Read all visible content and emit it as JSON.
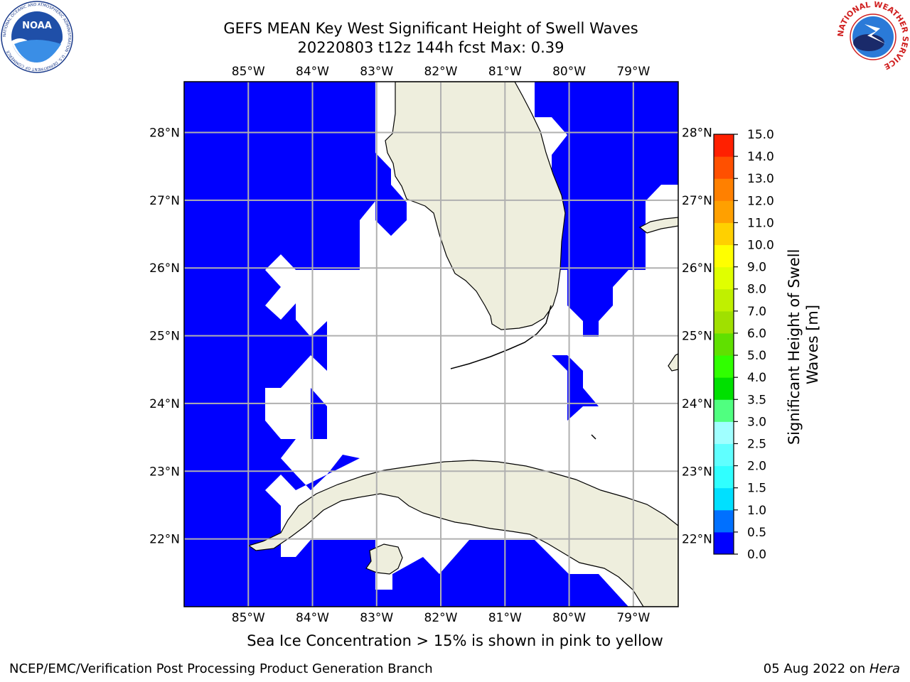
{
  "header": {
    "title_line1": "GEFS MEAN Key West Significant Height of Swell Waves",
    "title_line2": "20220803 t12z 144h fcst   Max: 0.39"
  },
  "logos": {
    "left": {
      "name": "noaa-logo",
      "text": "NOAA",
      "ring_text": "NATIONAL OCEANIC AND ATMOSPHERIC ADMINISTRATION · U.S. DEPARTMENT OF COMMERCE"
    },
    "right": {
      "name": "nws-logo",
      "ring_text": "NATIONAL WEATHER SERVICE"
    }
  },
  "map": {
    "lon_labels": [
      "85°W",
      "84°W",
      "83°W",
      "82°W",
      "81°W",
      "80°W",
      "79°W"
    ],
    "lat_labels": [
      "28°N",
      "27°N",
      "26°N",
      "25°N",
      "24°N",
      "23°N",
      "22°N"
    ],
    "lon_values": [
      -85,
      -84,
      -83,
      -82,
      -81,
      -80,
      -79
    ],
    "lat_values": [
      28,
      27,
      26,
      25,
      24,
      23,
      22
    ],
    "lon_range": [
      -86.0,
      -78.3
    ],
    "lat_range": [
      21.0,
      28.75
    ],
    "gridlines": true,
    "colors": {
      "swell_low": "#0000ff",
      "land": "#eeeedd",
      "grid": "#b0b0b0",
      "coast": "#000000"
    }
  },
  "colorbar": {
    "label": "Significant Height of Swell Waves [m]",
    "tick_labels": [
      "0.0",
      "0.5",
      "1.0",
      "1.5",
      "2.0",
      "2.5",
      "3.0",
      "3.5",
      "4.0",
      "5.0",
      "6.0",
      "7.0",
      "8.0",
      "9.0",
      "10.0",
      "11.0",
      "12.0",
      "13.0",
      "14.0",
      "15.0"
    ],
    "colors": [
      "#0000ff",
      "#0070ff",
      "#00e0ff",
      "#30ffff",
      "#60ffff",
      "#a0ffff",
      "#50ff80",
      "#00e000",
      "#30ff00",
      "#60e000",
      "#a0e000",
      "#c0f000",
      "#e0ff00",
      "#ffff00",
      "#ffd000",
      "#ffa000",
      "#ff8000",
      "#ff5000",
      "#ff2000",
      "#ff0000"
    ]
  },
  "note": "Sea Ice Concentration > 15% is shown in pink to yellow",
  "footer": {
    "left": "NCEP/EMC/Verification Post Processing Product Generation Branch",
    "right_prefix": "05 Aug 2022 on ",
    "right_host": "Hera"
  }
}
